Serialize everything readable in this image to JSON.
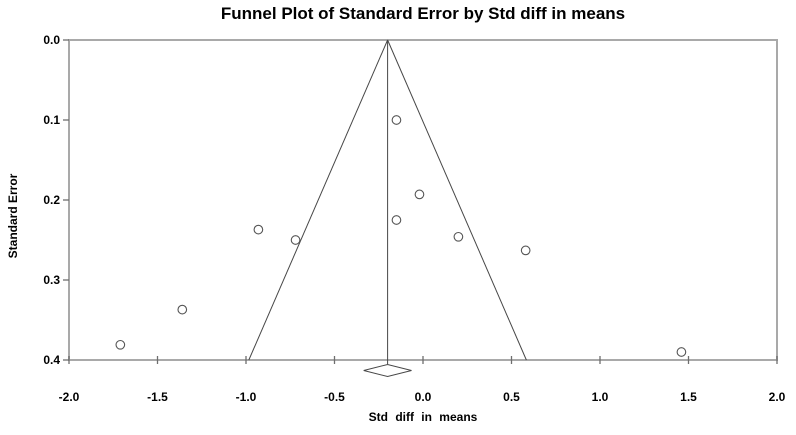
{
  "chart_data": {
    "type": "scatter",
    "subtype": "funnel-plot",
    "title": "Funnel Plot of Standard Error by Std diff in means",
    "xlabel": "Std diff in means",
    "ylabel": "Standard Error",
    "xlim": [
      -2.0,
      2.0
    ],
    "ylim": [
      0.0,
      0.4
    ],
    "y_axis_inverted": true,
    "grid": false,
    "legend": false,
    "x_ticks": [
      -2.0,
      -1.5,
      -1.0,
      -0.5,
      0.0,
      0.5,
      1.0,
      1.5,
      2.0
    ],
    "x_tick_labels": [
      "-2.0",
      "-1.5",
      "-1.0",
      "-0.5",
      "0.0",
      "0.5",
      "1.0",
      "1.5",
      "2.0"
    ],
    "y_ticks": [
      0.0,
      0.1,
      0.2,
      0.3,
      0.4
    ],
    "y_tick_labels": [
      "0.0",
      "0.1",
      "0.2",
      "0.3",
      "0.4"
    ],
    "points": [
      {
        "x": -0.15,
        "se": 0.1
      },
      {
        "x": -0.02,
        "se": 0.193
      },
      {
        "x": -0.15,
        "se": 0.225
      },
      {
        "x": -0.93,
        "se": 0.237
      },
      {
        "x": 0.2,
        "se": 0.246
      },
      {
        "x": -0.72,
        "se": 0.25
      },
      {
        "x": 0.58,
        "se": 0.263
      },
      {
        "x": -1.36,
        "se": 0.337
      },
      {
        "x": -1.71,
        "se": 0.381
      },
      {
        "x": 1.46,
        "se": 0.39
      }
    ],
    "funnel": {
      "center_x": -0.2,
      "apex_se": 0.0,
      "bottom_se": 0.4,
      "left_bottom_x": -0.984,
      "right_bottom_x": 0.584
    },
    "pooled_diamond": {
      "center_x": -0.2,
      "left_x": -0.335,
      "right_x": -0.065
    },
    "colors": {
      "background": "#ffffff",
      "frame": "#a9a9a9",
      "tick": "#6e6e6e",
      "funnel_line": "#474747",
      "marker_stroke": "#555555",
      "marker_fill": "#ffffff",
      "text": "#000000"
    }
  }
}
